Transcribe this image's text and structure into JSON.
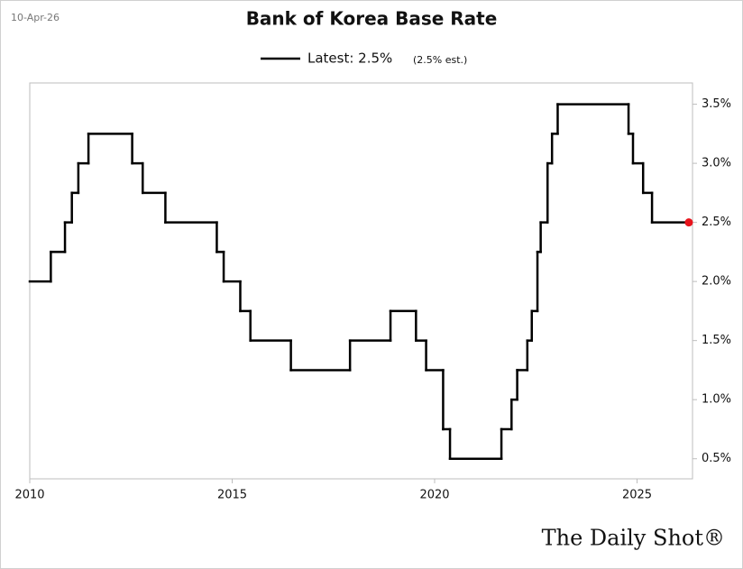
{
  "chart_data": {
    "type": "step",
    "title": "Bank of Korea Base Rate",
    "date_stamp": "10-Apr-26",
    "legend_note": "(2.5% est.)",
    "source": "The Daily Shot®",
    "series": [
      {
        "name": "Latest: 2.5%",
        "color": "#000000",
        "end_marker_color": "#e8141c",
        "x": [
          2010.0,
          2010.52,
          2010.87,
          2011.04,
          2011.2,
          2011.45,
          2012.53,
          2012.79,
          2013.35,
          2014.62,
          2014.79,
          2015.2,
          2015.45,
          2016.45,
          2017.91,
          2018.91,
          2019.54,
          2019.79,
          2020.21,
          2020.38,
          2021.65,
          2021.9,
          2022.04,
          2022.29,
          2022.4,
          2022.54,
          2022.62,
          2022.79,
          2022.9,
          2023.04,
          2024.79,
          2024.9,
          2025.15,
          2025.37,
          2026.28
        ],
        "values": [
          2.0,
          2.25,
          2.5,
          2.75,
          3.0,
          3.25,
          3.0,
          2.75,
          2.5,
          2.25,
          2.0,
          1.75,
          1.5,
          1.25,
          1.5,
          1.75,
          1.5,
          1.25,
          0.75,
          0.5,
          0.75,
          1.0,
          1.25,
          1.5,
          1.75,
          2.25,
          2.5,
          3.0,
          3.25,
          3.5,
          3.25,
          3.0,
          2.75,
          2.5,
          2.5
        ]
      }
    ],
    "xlim": [
      2010.0,
      2026.37
    ],
    "xticks": [
      2010,
      2015,
      2020,
      2025
    ],
    "ylim": [
      0.33,
      3.68
    ],
    "yticks": [
      {
        "value": 0.5,
        "label": "0.5%"
      },
      {
        "value": 1.0,
        "label": "1.0%"
      },
      {
        "value": 1.5,
        "label": "1.5%"
      },
      {
        "value": 2.0,
        "label": "2.0%"
      },
      {
        "value": 2.5,
        "label": "2.5%"
      },
      {
        "value": 3.0,
        "label": "3.0%"
      },
      {
        "value": 3.5,
        "label": "3.5%"
      }
    ],
    "grid": false
  }
}
